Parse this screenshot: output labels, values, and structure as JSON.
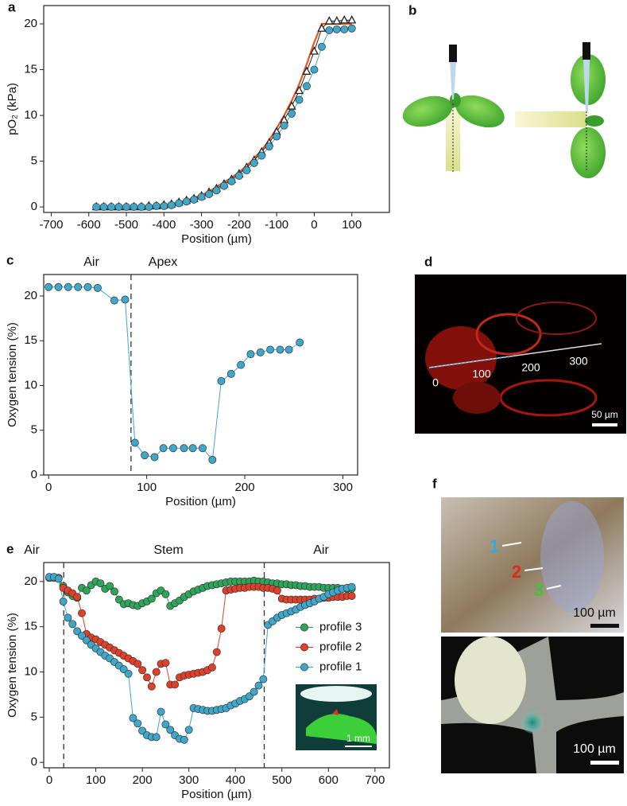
{
  "panel_labels": [
    "a",
    "b",
    "c",
    "d",
    "e",
    "f"
  ],
  "chart_data": [
    {
      "type": "line",
      "xlabel": "Position (µm)",
      "ylabel": "pO₂ (kPa)",
      "xlim": [
        -720,
        200
      ],
      "ylim": [
        -0.6,
        22
      ],
      "xticks": [
        -700,
        -600,
        -500,
        -400,
        -300,
        -200,
        -100,
        0,
        100
      ],
      "yticks": [
        0,
        5,
        10,
        15,
        20
      ],
      "x": [
        -580,
        -560,
        -540,
        -520,
        -500,
        -480,
        -460,
        -440,
        -420,
        -400,
        -380,
        -360,
        -340,
        -320,
        -300,
        -280,
        -260,
        -240,
        -220,
        -200,
        -180,
        -160,
        -140,
        -120,
        -100,
        -80,
        -60,
        -40,
        -20,
        0,
        20,
        40,
        60,
        80,
        100
      ],
      "series": [
        {
          "color": "#222222",
          "marker": "triangle",
          "values": [
            0,
            0,
            0,
            0,
            0,
            0,
            0,
            0.1,
            0.1,
            0.2,
            0.3,
            0.5,
            0.7,
            0.9,
            1.2,
            1.6,
            2.0,
            2.5,
            3.0,
            3.6,
            4.3,
            5.1,
            6.0,
            7.0,
            8.2,
            9.5,
            11.0,
            12.7,
            14.8,
            17.0,
            19.5,
            20.3,
            20.3,
            20.4,
            20.4
          ]
        },
        {
          "color": "#3fa7c9",
          "marker": "circle",
          "values": [
            0,
            0,
            0,
            0,
            0,
            0,
            0,
            0,
            0.1,
            0.1,
            0.2,
            0.4,
            0.6,
            0.8,
            1.1,
            1.4,
            1.8,
            2.3,
            2.8,
            3.4,
            4.0,
            4.8,
            5.6,
            6.6,
            7.7,
            8.9,
            10.2,
            11.7,
            13.2,
            15.0,
            17.5,
            19.3,
            19.4,
            19.4,
            19.5
          ]
        },
        {
          "color": "#e8541e",
          "marker": "none",
          "values": [
            0,
            0,
            0,
            0,
            0,
            0,
            0,
            0.1,
            0.1,
            0.2,
            0.3,
            0.5,
            0.7,
            1.0,
            1.3,
            1.7,
            2.2,
            2.7,
            3.2,
            3.8,
            4.5,
            5.3,
            6.2,
            7.3,
            8.6,
            10.0,
            11.6,
            13.4,
            15.6,
            18.0,
            20.0,
            20.0,
            20.0,
            20.0,
            20.0
          ]
        }
      ]
    },
    {
      "type": "line",
      "xlabel": "Position (µm)",
      "ylabel": "Oxygen tension (%)",
      "xlim": [
        -5,
        315
      ],
      "ylim": [
        0,
        22.4
      ],
      "xticks": [
        0,
        100,
        200,
        300
      ],
      "yticks": [
        0,
        5,
        10,
        15,
        20
      ],
      "annotations": [
        "Air",
        "Apex"
      ],
      "vlines": [
        84
      ],
      "x": [
        0,
        10,
        20,
        30,
        40,
        50,
        67,
        78,
        88,
        98,
        108,
        117,
        127,
        138,
        147,
        157,
        167,
        176,
        186,
        196,
        206,
        216,
        226,
        236,
        245,
        256
      ],
      "series": [
        {
          "color": "#3fa7c9",
          "marker": "circle",
          "values": [
            21,
            21,
            21,
            21,
            21,
            20.9,
            19.5,
            19.6,
            3.6,
            2.2,
            2.0,
            3.0,
            3.0,
            3.0,
            3.0,
            3.0,
            1.7,
            10.5,
            11.3,
            12.3,
            13.5,
            13.7,
            14.0,
            14.0,
            14.0,
            14.8
          ]
        }
      ]
    },
    {
      "type": "line",
      "xlabel": "Position (µm)",
      "ylabel": "Oxygen tension (%)",
      "xlim": [
        -12,
        731
      ],
      "ylim": [
        -0.6,
        22.1
      ],
      "xticks": [
        0,
        100,
        200,
        300,
        400,
        500,
        600,
        700
      ],
      "yticks": [
        0,
        5,
        10,
        15,
        20
      ],
      "annotations": [
        "Air",
        "Stem",
        "Air"
      ],
      "vlines": [
        31,
        462
      ],
      "legend": "center right",
      "x": [
        0,
        10,
        20,
        30,
        40,
        50,
        60,
        70,
        80,
        90,
        100,
        110,
        120,
        130,
        140,
        150,
        160,
        170,
        180,
        190,
        200,
        210,
        220,
        230,
        240,
        250,
        260,
        270,
        280,
        290,
        300,
        310,
        320,
        330,
        340,
        350,
        360,
        370,
        380,
        390,
        400,
        410,
        420,
        430,
        440,
        450,
        460,
        470,
        480,
        490,
        500,
        510,
        520,
        530,
        540,
        550,
        560,
        570,
        580,
        590,
        600,
        610,
        620,
        630,
        640,
        650
      ],
      "series": [
        {
          "name": "profile 3",
          "color": "#2ea65a",
          "marker": "circle",
          "values": [
            20.4,
            20.4,
            20.4,
            19.5,
            18.8,
            18.4,
            18.2,
            19.3,
            19.0,
            19.6,
            20.0,
            19.8,
            19.2,
            19.5,
            18.9,
            18.0,
            17.5,
            17.6,
            17.4,
            17.3,
            17.6,
            17.8,
            18.1,
            18.7,
            19.0,
            18.6,
            17.3,
            17.6,
            17.9,
            18.3,
            18.6,
            18.9,
            19.1,
            19.3,
            19.5,
            19.6,
            19.7,
            19.8,
            19.9,
            20.0,
            20.0,
            20.0,
            20.0,
            20.0,
            20.1,
            20.0,
            20.0,
            19.9,
            19.8,
            19.8,
            19.7,
            19.7,
            19.6,
            19.6,
            19.5,
            19.5,
            19.4,
            19.4,
            19.4,
            19.3,
            19.3,
            19.3,
            19.3,
            19.2,
            19.2,
            19.2
          ]
        },
        {
          "name": "profile 2",
          "color": "#e0402a",
          "marker": "circle",
          "values": [
            20.5,
            20.5,
            20.4,
            19.3,
            19.0,
            18.7,
            18.3,
            16.5,
            14.2,
            13.8,
            13.6,
            13.3,
            13.0,
            12.7,
            12.4,
            12.1,
            11.8,
            11.5,
            11.2,
            10.9,
            10.2,
            9.4,
            8.4,
            10.0,
            10.9,
            11.0,
            8.6,
            8.6,
            9.4,
            9.6,
            9.7,
            9.8,
            9.9,
            10.0,
            10.2,
            10.5,
            12.2,
            14.8,
            19.0,
            19.1,
            19.2,
            19.3,
            19.3,
            19.4,
            19.4,
            19.4,
            19.3,
            19.3,
            19.2,
            19.0,
            18.1,
            18.0,
            18.0,
            18.0,
            18.0,
            18.0,
            18.0,
            18.1,
            18.1,
            18.2,
            18.2,
            18.3,
            18.3,
            18.3,
            18.4,
            18.4
          ]
        },
        {
          "name": "profile 1",
          "color": "#3fa7c9",
          "marker": "circle",
          "values": [
            20.5,
            20.5,
            20.3,
            17.8,
            16.0,
            15.3,
            14.5,
            14.0,
            13.5,
            13.0,
            12.6,
            12.2,
            11.8,
            11.5,
            11.1,
            10.7,
            10.3,
            9.8,
            4.9,
            4.3,
            3.5,
            3.0,
            2.8,
            2.8,
            5.6,
            4.2,
            3.6,
            3.0,
            2.6,
            2.5,
            3.6,
            6.0,
            5.9,
            5.8,
            5.7,
            5.7,
            5.8,
            5.9,
            6.0,
            6.3,
            6.5,
            6.8,
            7.0,
            7.3,
            7.8,
            8.5,
            9.2,
            15.2,
            15.6,
            16.0,
            16.3,
            16.5,
            16.7,
            16.9,
            17.2,
            17.4,
            17.6,
            17.8,
            18.1,
            18.3,
            18.6,
            18.8,
            19.0,
            19.2,
            19.3,
            19.4
          ]
        }
      ]
    }
  ],
  "panel_d": {
    "scale_labels": [
      "0",
      "100",
      "200",
      "300"
    ],
    "scale_bar": "50 µm"
  },
  "panel_e_inset": {
    "scale_bar": "1 mm"
  },
  "panel_f": {
    "arrow_labels": [
      "1",
      "2",
      "3"
    ],
    "scale_bars": [
      "100 µm",
      "100 µm"
    ]
  }
}
